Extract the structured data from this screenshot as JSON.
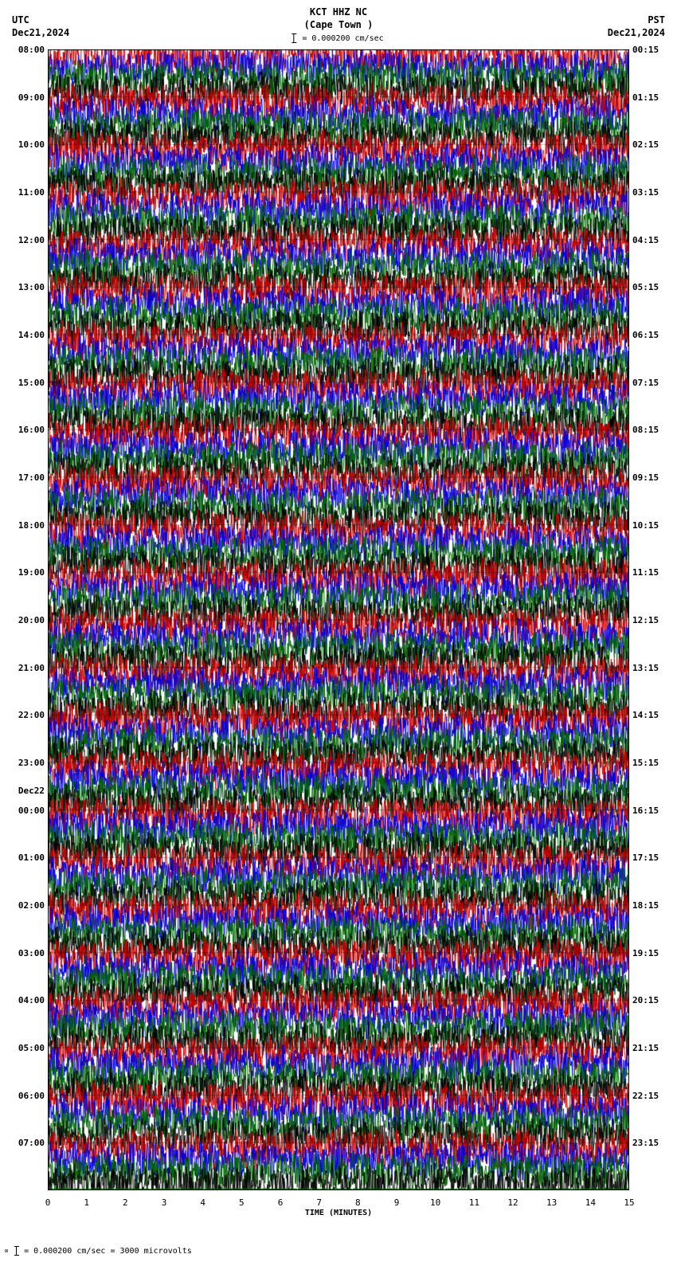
{
  "header": {
    "left_tz": "UTC",
    "left_date": "Dec21,2024",
    "station": "KCT HHZ NC",
    "location": "(Cape Town )",
    "right_tz": "PST",
    "right_date": "Dec21,2024",
    "scale_text": "= 0.000200 cm/sec"
  },
  "footer": {
    "text_prefix": "∝",
    "text": "= 0.000200 cm/sec =   3000 microvolts"
  },
  "x_axis": {
    "label": "TIME (MINUTES)",
    "min": 0,
    "max": 15,
    "ticks": [
      0,
      1,
      2,
      3,
      4,
      5,
      6,
      7,
      8,
      9,
      10,
      11,
      12,
      13,
      14,
      15
    ]
  },
  "helicorder": {
    "type": "seismogram-helicorder",
    "n_rows": 96,
    "row_height_ratio": 1.0,
    "amplitude_scale": 1.4,
    "trace_colors": [
      "#cc0000",
      "#0000dd",
      "#006600",
      "#000000"
    ],
    "background_color": "#ffffff",
    "gridline_color": "#000000",
    "hour_line_every": 4,
    "noise_density": 0.98,
    "left_labels": [
      {
        "row": 0,
        "text": "08:00"
      },
      {
        "row": 4,
        "text": "09:00"
      },
      {
        "row": 8,
        "text": "10:00"
      },
      {
        "row": 12,
        "text": "11:00"
      },
      {
        "row": 16,
        "text": "12:00"
      },
      {
        "row": 20,
        "text": "13:00"
      },
      {
        "row": 24,
        "text": "14:00"
      },
      {
        "row": 28,
        "text": "15:00"
      },
      {
        "row": 32,
        "text": "16:00"
      },
      {
        "row": 36,
        "text": "17:00"
      },
      {
        "row": 40,
        "text": "18:00"
      },
      {
        "row": 44,
        "text": "19:00"
      },
      {
        "row": 48,
        "text": "20:00"
      },
      {
        "row": 52,
        "text": "21:00"
      },
      {
        "row": 56,
        "text": "22:00"
      },
      {
        "row": 60,
        "text": "23:00"
      },
      {
        "row": 63,
        "text": "Dec22",
        "extra": true
      },
      {
        "row": 64,
        "text": "00:00"
      },
      {
        "row": 68,
        "text": "01:00"
      },
      {
        "row": 72,
        "text": "02:00"
      },
      {
        "row": 76,
        "text": "03:00"
      },
      {
        "row": 80,
        "text": "04:00"
      },
      {
        "row": 84,
        "text": "05:00"
      },
      {
        "row": 88,
        "text": "06:00"
      },
      {
        "row": 92,
        "text": "07:00"
      }
    ],
    "right_labels": [
      {
        "row": 0,
        "text": "00:15"
      },
      {
        "row": 4,
        "text": "01:15"
      },
      {
        "row": 8,
        "text": "02:15"
      },
      {
        "row": 12,
        "text": "03:15"
      },
      {
        "row": 16,
        "text": "04:15"
      },
      {
        "row": 20,
        "text": "05:15"
      },
      {
        "row": 24,
        "text": "06:15"
      },
      {
        "row": 28,
        "text": "07:15"
      },
      {
        "row": 32,
        "text": "08:15"
      },
      {
        "row": 36,
        "text": "09:15"
      },
      {
        "row": 40,
        "text": "10:15"
      },
      {
        "row": 44,
        "text": "11:15"
      },
      {
        "row": 48,
        "text": "12:15"
      },
      {
        "row": 52,
        "text": "13:15"
      },
      {
        "row": 56,
        "text": "14:15"
      },
      {
        "row": 60,
        "text": "15:15"
      },
      {
        "row": 64,
        "text": "16:15"
      },
      {
        "row": 68,
        "text": "17:15"
      },
      {
        "row": 72,
        "text": "18:15"
      },
      {
        "row": 76,
        "text": "19:15"
      },
      {
        "row": 80,
        "text": "20:15"
      },
      {
        "row": 84,
        "text": "21:15"
      },
      {
        "row": 88,
        "text": "22:15"
      },
      {
        "row": 92,
        "text": "23:15"
      }
    ]
  }
}
